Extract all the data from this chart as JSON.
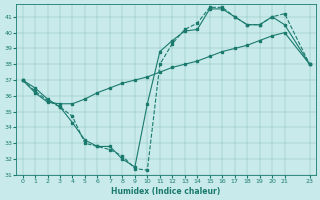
{
  "xlabel": "Humidex (Indice chaleur)",
  "bg_color": "#c8eaea",
  "line_color": "#1a7a6e",
  "xlim": [
    -0.5,
    23.5
  ],
  "ylim": [
    31,
    41.8
  ],
  "yticks": [
    31,
    32,
    33,
    34,
    35,
    36,
    37,
    38,
    39,
    40,
    41
  ],
  "xticks": [
    0,
    1,
    2,
    3,
    4,
    5,
    6,
    7,
    8,
    9,
    10,
    11,
    12,
    13,
    14,
    15,
    16,
    17,
    18,
    19,
    20,
    21,
    23
  ],
  "line1_x": [
    0,
    1,
    2,
    3,
    4,
    5,
    6,
    7,
    8,
    9,
    10,
    11,
    12,
    13,
    14,
    15,
    16,
    17,
    18,
    19,
    20,
    21,
    23
  ],
  "line1_y": [
    37,
    36.5,
    35.8,
    35.3,
    34.3,
    33.2,
    32.8,
    32.8,
    32.0,
    31.5,
    35.5,
    38.8,
    39.5,
    40.1,
    40.2,
    41.5,
    41.5,
    41.0,
    40.5,
    40.5,
    41.0,
    40.5,
    38.0
  ],
  "line2_x": [
    0,
    1,
    2,
    3,
    4,
    5,
    6,
    7,
    8,
    9,
    10,
    11,
    12,
    13,
    14,
    15,
    16,
    17,
    18,
    19,
    20,
    21,
    23
  ],
  "line2_y": [
    37,
    36.3,
    35.7,
    35.3,
    34.7,
    33.0,
    32.8,
    32.6,
    32.2,
    31.4,
    31.3,
    38.0,
    39.3,
    40.2,
    40.6,
    41.6,
    41.6,
    41.0,
    40.5,
    40.5,
    41.0,
    41.2,
    38.0
  ],
  "line3_x": [
    0,
    1,
    2,
    3,
    4,
    5,
    6,
    7,
    8,
    9,
    10,
    11,
    12,
    13,
    14,
    15,
    16,
    17,
    18,
    19,
    20,
    21,
    23
  ],
  "line3_y": [
    37,
    36.2,
    35.6,
    35.5,
    35.5,
    35.8,
    36.2,
    36.5,
    36.8,
    37.0,
    37.2,
    37.5,
    37.8,
    38.0,
    38.2,
    38.5,
    38.8,
    39.0,
    39.2,
    39.5,
    39.8,
    40.0,
    38.0
  ]
}
